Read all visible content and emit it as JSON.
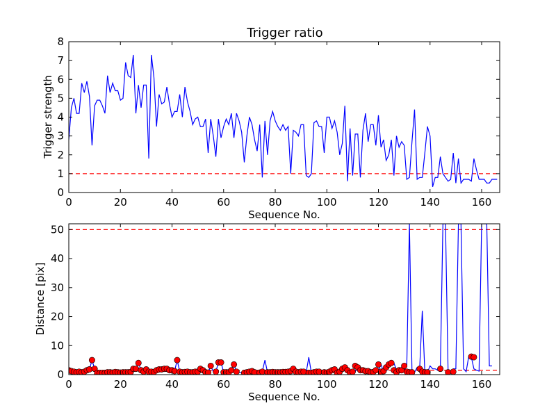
{
  "chart_data": [
    {
      "type": "line",
      "title": "Trigger ratio",
      "xlabel": "Sequence No.",
      "ylabel": "Trigger strength",
      "xlim": [
        0,
        167
      ],
      "ylim": [
        0,
        8
      ],
      "xticks": [
        "0",
        "20",
        "40",
        "60",
        "80",
        "100",
        "120",
        "140",
        "160"
      ],
      "yticks": [
        "0",
        "1",
        "2",
        "3",
        "4",
        "5",
        "6",
        "7",
        "8"
      ],
      "grid": false,
      "line_color": "#0000ff",
      "threshold": {
        "value": 1,
        "color": "#ff0000",
        "style": "dashed"
      },
      "x_start": 0,
      "values": [
        2.8,
        4.5,
        5.0,
        4.2,
        4.2,
        5.8,
        5.3,
        5.9,
        5.1,
        2.5,
        4.6,
        4.9,
        4.9,
        4.6,
        4.2,
        6.2,
        5.3,
        5.8,
        5.4,
        5.4,
        4.9,
        5.0,
        6.9,
        6.2,
        6.1,
        7.3,
        4.2,
        5.7,
        4.5,
        5.7,
        5.7,
        1.8,
        7.3,
        6.1,
        3.5,
        5.2,
        4.7,
        4.8,
        5.6,
        4.7,
        4.0,
        4.3,
        4.3,
        5.2,
        4.0,
        5.6,
        4.8,
        4.3,
        3.6,
        3.9,
        4.0,
        3.5,
        3.5,
        3.9,
        2.1,
        3.9,
        3.0,
        1.9,
        3.9,
        2.9,
        3.5,
        3.9,
        3.6,
        4.2,
        2.9,
        4.2,
        3.8,
        3.2,
        1.6,
        3.0,
        4.0,
        3.6,
        2.8,
        2.2,
        3.6,
        0.8,
        3.8,
        2.0,
        3.8,
        4.3,
        3.8,
        3.5,
        3.3,
        3.6,
        3.3,
        3.5,
        1.0,
        3.3,
        3.2,
        3.0,
        3.6,
        3.6,
        0.9,
        0.8,
        1.0,
        3.7,
        3.8,
        3.5,
        3.5,
        2.1,
        4.0,
        4.0,
        3.4,
        3.8,
        3.2,
        2.0,
        2.6,
        4.6,
        0.6,
        3.4,
        0.9,
        3.1,
        3.1,
        0.8,
        3.3,
        4.2,
        2.7,
        3.6,
        3.6,
        2.5,
        4.1,
        2.4,
        2.8,
        1.7,
        2.0,
        2.8,
        0.9,
        3.0,
        2.4,
        2.7,
        2.5,
        0.7,
        0.8,
        2.7,
        4.4,
        0.7,
        0.8,
        0.8,
        2.1,
        3.5,
        3.0,
        0.3,
        0.8,
        0.8,
        1.9,
        1.0,
        0.8,
        0.6,
        0.7,
        2.1,
        0.5,
        1.8,
        0.5,
        0.7,
        0.7,
        0.7,
        0.6,
        1.8,
        1.2,
        0.7,
        0.7,
        0.7,
        0.5,
        0.5,
        0.7,
        0.7,
        0.7
      ]
    },
    {
      "type": "line",
      "title": "",
      "xlabel": "Sequence No.",
      "ylabel": "Distance [pix]",
      "xlim": [
        0,
        167
      ],
      "ylim": [
        0,
        52
      ],
      "xticks": [
        "0",
        "20",
        "40",
        "60",
        "80",
        "100",
        "120",
        "140",
        "160"
      ],
      "yticks": [
        "0",
        "10",
        "20",
        "30",
        "40",
        "50"
      ],
      "grid": false,
      "line_color": "#0000ff",
      "marker_color": "#ff0000",
      "thresholds": [
        {
          "value": 50,
          "color": "#ff0000",
          "style": "dashed"
        },
        {
          "value": 1.5,
          "color": "#ff0000",
          "style": "dashed"
        }
      ],
      "x_start": 0,
      "values": [
        0.5,
        1.2,
        1.0,
        0.8,
        1.0,
        0.8,
        1.0,
        1.5,
        1.8,
        5.0,
        2.0,
        0.5,
        0.5,
        0.6,
        0.6,
        0.8,
        0.8,
        0.7,
        0.9,
        0.8,
        0.7,
        0.8,
        0.8,
        0.8,
        0.9,
        2.0,
        2.0,
        4.0,
        1.5,
        1.0,
        1.8,
        1.0,
        1.0,
        0.9,
        1.5,
        1.8,
        1.8,
        2.0,
        2.0,
        1.5,
        1.5,
        1.2,
        5.0,
        1.0,
        0.8,
        0.9,
        1.0,
        0.8,
        0.8,
        1.0,
        1.0,
        2.0,
        1.5,
        0.8,
        0.7,
        3.0,
        1.0,
        1.0,
        4.2,
        4.2,
        0.8,
        0.8,
        0.8,
        1.5,
        3.5,
        1.0,
        0.8,
        0.7,
        0.6,
        0.8,
        1.0,
        1.2,
        0.8,
        0.8,
        0.7,
        1.0,
        5.0,
        0.8,
        0.8,
        0.9,
        0.8,
        0.8,
        0.8,
        0.9,
        0.9,
        1.0,
        1.2,
        2.0,
        1.0,
        0.8,
        1.0,
        1.0,
        0.8,
        6.0,
        0.6,
        0.6,
        0.8,
        1.0,
        1.0,
        0.6,
        0.8,
        0.7,
        1.0,
        1.5,
        1.8,
        0.6,
        1.0,
        2.0,
        2.5,
        1.5,
        0.6,
        1.0,
        3.0,
        2.5,
        1.5,
        1.5,
        1.2,
        1.2,
        0.8,
        0.9,
        1.5,
        3.5,
        1.0,
        1.2,
        2.5,
        3.5,
        4.0,
        1.5,
        0.8,
        1.5,
        1.5,
        3.0,
        52,
        0.8,
        0.8,
        2.5,
        2.5,
        22,
        0.8,
        0.8,
        3.0,
        2.0,
        2.0,
        1.5,
        2.0,
        52,
        52,
        1.5,
        0.8,
        2.0,
        2.0,
        52,
        52,
        2.0,
        1.0,
        6.2,
        6.0,
        2.0,
        1.5,
        1.2,
        52,
        52,
        52,
        3.0,
        3.0
      ],
      "marker_x": [
        0,
        1,
        2,
        3,
        4,
        5,
        6,
        7,
        8,
        9,
        10,
        11,
        12,
        13,
        14,
        15,
        16,
        17,
        18,
        19,
        20,
        21,
        22,
        23,
        24,
        25,
        26,
        27,
        28,
        29,
        30,
        31,
        32,
        33,
        34,
        35,
        36,
        37,
        38,
        39,
        40,
        41,
        42,
        43,
        44,
        45,
        46,
        47,
        48,
        49,
        50,
        51,
        52,
        53,
        54,
        55,
        57,
        58,
        59,
        60,
        61,
        62,
        63,
        64,
        65,
        68,
        69,
        70,
        71,
        72,
        74,
        75,
        77,
        78,
        79,
        80,
        81,
        82,
        83,
        84,
        85,
        86,
        87,
        88,
        89,
        90,
        91,
        93,
        94,
        95,
        96,
        97,
        99,
        100,
        101,
        102,
        103,
        104,
        105,
        106,
        107,
        108,
        109,
        110,
        111,
        112,
        113,
        114,
        115,
        116,
        117,
        118,
        119,
        120,
        121,
        122,
        123,
        124,
        125,
        126,
        127,
        128,
        129,
        130,
        131,
        132,
        133,
        136,
        137,
        138,
        139,
        144,
        147,
        149,
        156,
        157
      ],
      "marker_y": [
        1.5,
        1.2,
        1.0,
        0.8,
        1.0,
        0.8,
        1.0,
        1.5,
        1.8,
        5.0,
        2.0,
        0.5,
        0.5,
        0.6,
        0.6,
        0.8,
        0.8,
        0.7,
        0.9,
        0.8,
        0.7,
        0.8,
        0.8,
        0.8,
        0.9,
        2.0,
        2.0,
        4.0,
        1.5,
        1.0,
        1.8,
        1.0,
        1.0,
        0.9,
        1.5,
        1.8,
        1.8,
        2.0,
        2.0,
        1.5,
        1.5,
        1.2,
        5.0,
        1.0,
        0.8,
        0.9,
        1.0,
        0.8,
        0.8,
        1.0,
        1.0,
        2.0,
        1.5,
        0.8,
        0.7,
        3.0,
        1.0,
        4.2,
        4.2,
        0.8,
        0.8,
        0.8,
        1.5,
        3.5,
        1.0,
        0.6,
        0.8,
        1.0,
        1.2,
        0.8,
        0.7,
        1.0,
        0.8,
        0.8,
        0.9,
        0.8,
        0.8,
        0.8,
        0.9,
        0.9,
        1.0,
        1.2,
        2.0,
        1.0,
        0.8,
        1.0,
        1.0,
        0.6,
        0.6,
        0.8,
        1.0,
        1.0,
        0.8,
        0.7,
        1.0,
        1.5,
        1.8,
        0.6,
        1.0,
        2.0,
        2.5,
        1.5,
        0.6,
        1.0,
        3.0,
        2.5,
        1.5,
        1.5,
        1.2,
        1.2,
        0.8,
        0.9,
        1.5,
        3.5,
        1.0,
        1.2,
        2.5,
        3.5,
        4.0,
        1.5,
        0.8,
        1.5,
        1.5,
        3.0,
        1.0,
        0.8,
        0.8,
        2.0,
        1.0,
        0.8,
        0.8,
        2.0,
        0.8,
        1.0,
        6.2,
        6.0
      ]
    }
  ]
}
